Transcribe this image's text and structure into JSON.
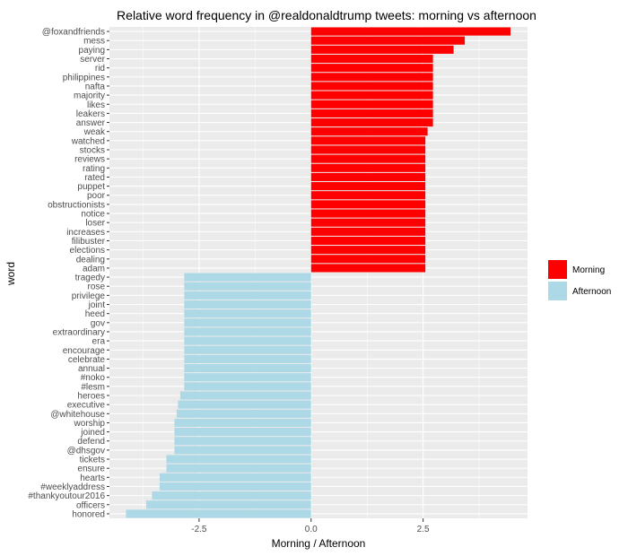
{
  "chart_data": {
    "type": "bar",
    "orientation": "horizontal",
    "title": "Relative word frequency in @realdonaldtrump tweets: morning vs afternoon",
    "xlabel": "Morning / Afternoon",
    "ylabel": "word",
    "xlim": [
      -4.5,
      4.83
    ],
    "x_ticks": [
      -2.5,
      0.0,
      2.5
    ],
    "x_tick_labels": [
      "-2.5",
      "0.0",
      "2.5"
    ],
    "grid": true,
    "legend_position": "right",
    "legend": [
      {
        "name": "Morning",
        "color": "#ff0000"
      },
      {
        "name": "Afternoon",
        "color": "#add8e6"
      }
    ],
    "categories": [
      "@foxandfriends",
      "mess",
      "paying",
      "server",
      "rid",
      "philippines",
      "nafta",
      "majority",
      "likes",
      "leakers",
      "answer",
      "weak",
      "watched",
      "stocks",
      "reviews",
      "rating",
      "rated",
      "puppet",
      "poor",
      "obstructionists",
      "notice",
      "loser",
      "increases",
      "filibuster",
      "elections",
      "dealing",
      "adam",
      "tragedy",
      "rose",
      "privilege",
      "joint",
      "heed",
      "gov",
      "extraordinary",
      "era",
      "encourage",
      "celebrate",
      "annual",
      "#noko",
      "#lesm",
      "heroes",
      "executive",
      "@whitehouse",
      "worship",
      "joined",
      "defend",
      "@dhsgov",
      "tickets",
      "ensure",
      "hearts",
      "#weeklyaddress",
      "#thankyoutour2016",
      "officers",
      "honored"
    ],
    "values": [
      4.45,
      3.43,
      3.18,
      2.72,
      2.72,
      2.72,
      2.72,
      2.72,
      2.72,
      2.72,
      2.72,
      2.6,
      2.55,
      2.55,
      2.55,
      2.55,
      2.55,
      2.55,
      2.55,
      2.55,
      2.55,
      2.55,
      2.55,
      2.55,
      2.55,
      2.55,
      2.55,
      -2.83,
      -2.83,
      -2.83,
      -2.83,
      -2.83,
      -2.83,
      -2.83,
      -2.83,
      -2.83,
      -2.83,
      -2.83,
      -2.83,
      -2.83,
      -2.92,
      -2.97,
      -3.0,
      -3.05,
      -3.05,
      -3.05,
      -3.05,
      -3.23,
      -3.23,
      -3.38,
      -3.38,
      -3.55,
      -3.68,
      -4.13
    ],
    "series_of": [
      "Morning",
      "Morning",
      "Morning",
      "Morning",
      "Morning",
      "Morning",
      "Morning",
      "Morning",
      "Morning",
      "Morning",
      "Morning",
      "Morning",
      "Morning",
      "Morning",
      "Morning",
      "Morning",
      "Morning",
      "Morning",
      "Morning",
      "Morning",
      "Morning",
      "Morning",
      "Morning",
      "Morning",
      "Morning",
      "Morning",
      "Morning",
      "Afternoon",
      "Afternoon",
      "Afternoon",
      "Afternoon",
      "Afternoon",
      "Afternoon",
      "Afternoon",
      "Afternoon",
      "Afternoon",
      "Afternoon",
      "Afternoon",
      "Afternoon",
      "Afternoon",
      "Afternoon",
      "Afternoon",
      "Afternoon",
      "Afternoon",
      "Afternoon",
      "Afternoon",
      "Afternoon",
      "Afternoon",
      "Afternoon",
      "Afternoon",
      "Afternoon",
      "Afternoon",
      "Afternoon",
      "Afternoon"
    ]
  }
}
